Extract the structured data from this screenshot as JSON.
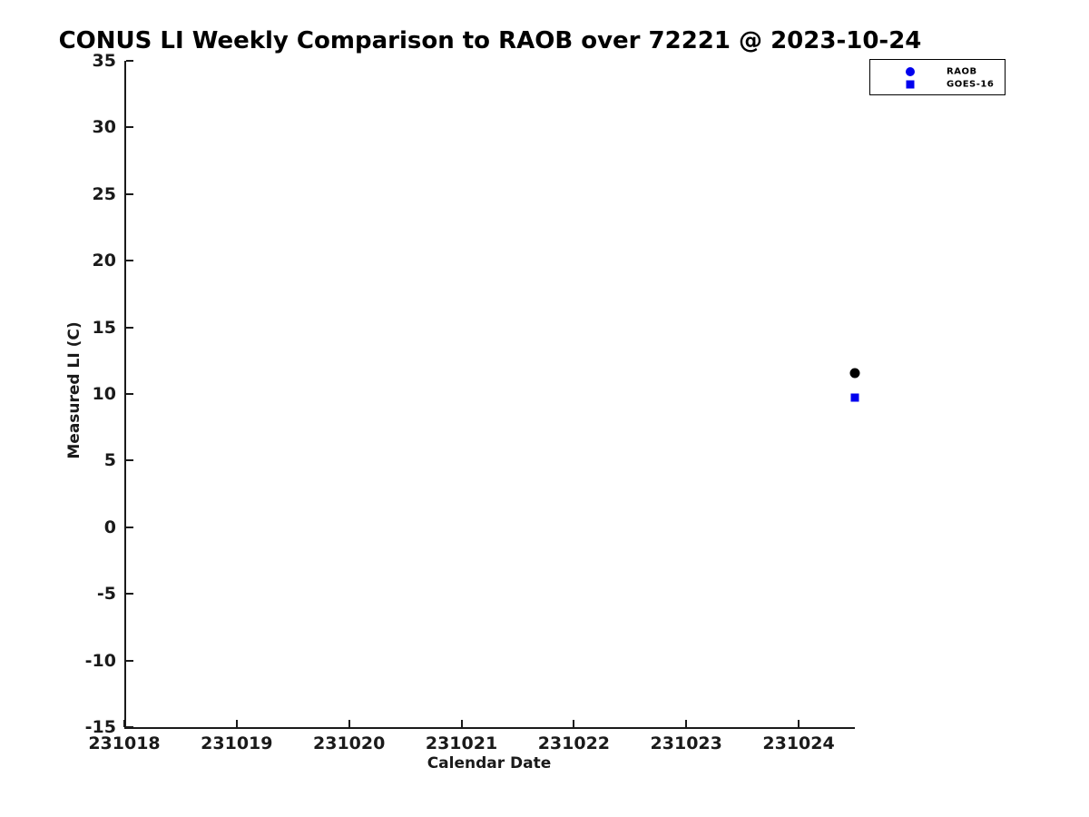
{
  "chart_data": {
    "type": "scatter",
    "title": "CONUS LI Weekly Comparison to RAOB over 72221 @ 2023-10-24",
    "xlabel": "Calendar Date",
    "ylabel": "Measured LI (C)",
    "xlim": [
      231018,
      231024.5
    ],
    "ylim": [
      -15,
      35
    ],
    "xticks": [
      231018,
      231019,
      231020,
      231021,
      231022,
      231023,
      231024
    ],
    "yticks": [
      35,
      30,
      25,
      20,
      15,
      10,
      5,
      0,
      -5,
      -10,
      -15
    ],
    "grid": false,
    "legend_position": "top-right",
    "axis_color": "#1a1a1a",
    "series": [
      {
        "name": "RAOB",
        "marker": "circle",
        "point_color": "#000000",
        "legend_color": "#0000ee",
        "points": [
          {
            "x": 231024.5,
            "y": 11.6
          }
        ]
      },
      {
        "name": "GOES-16",
        "marker": "square",
        "point_color": "#0000ee",
        "legend_color": "#0000ee",
        "points": [
          {
            "x": 231024.5,
            "y": 9.7
          }
        ]
      }
    ]
  }
}
